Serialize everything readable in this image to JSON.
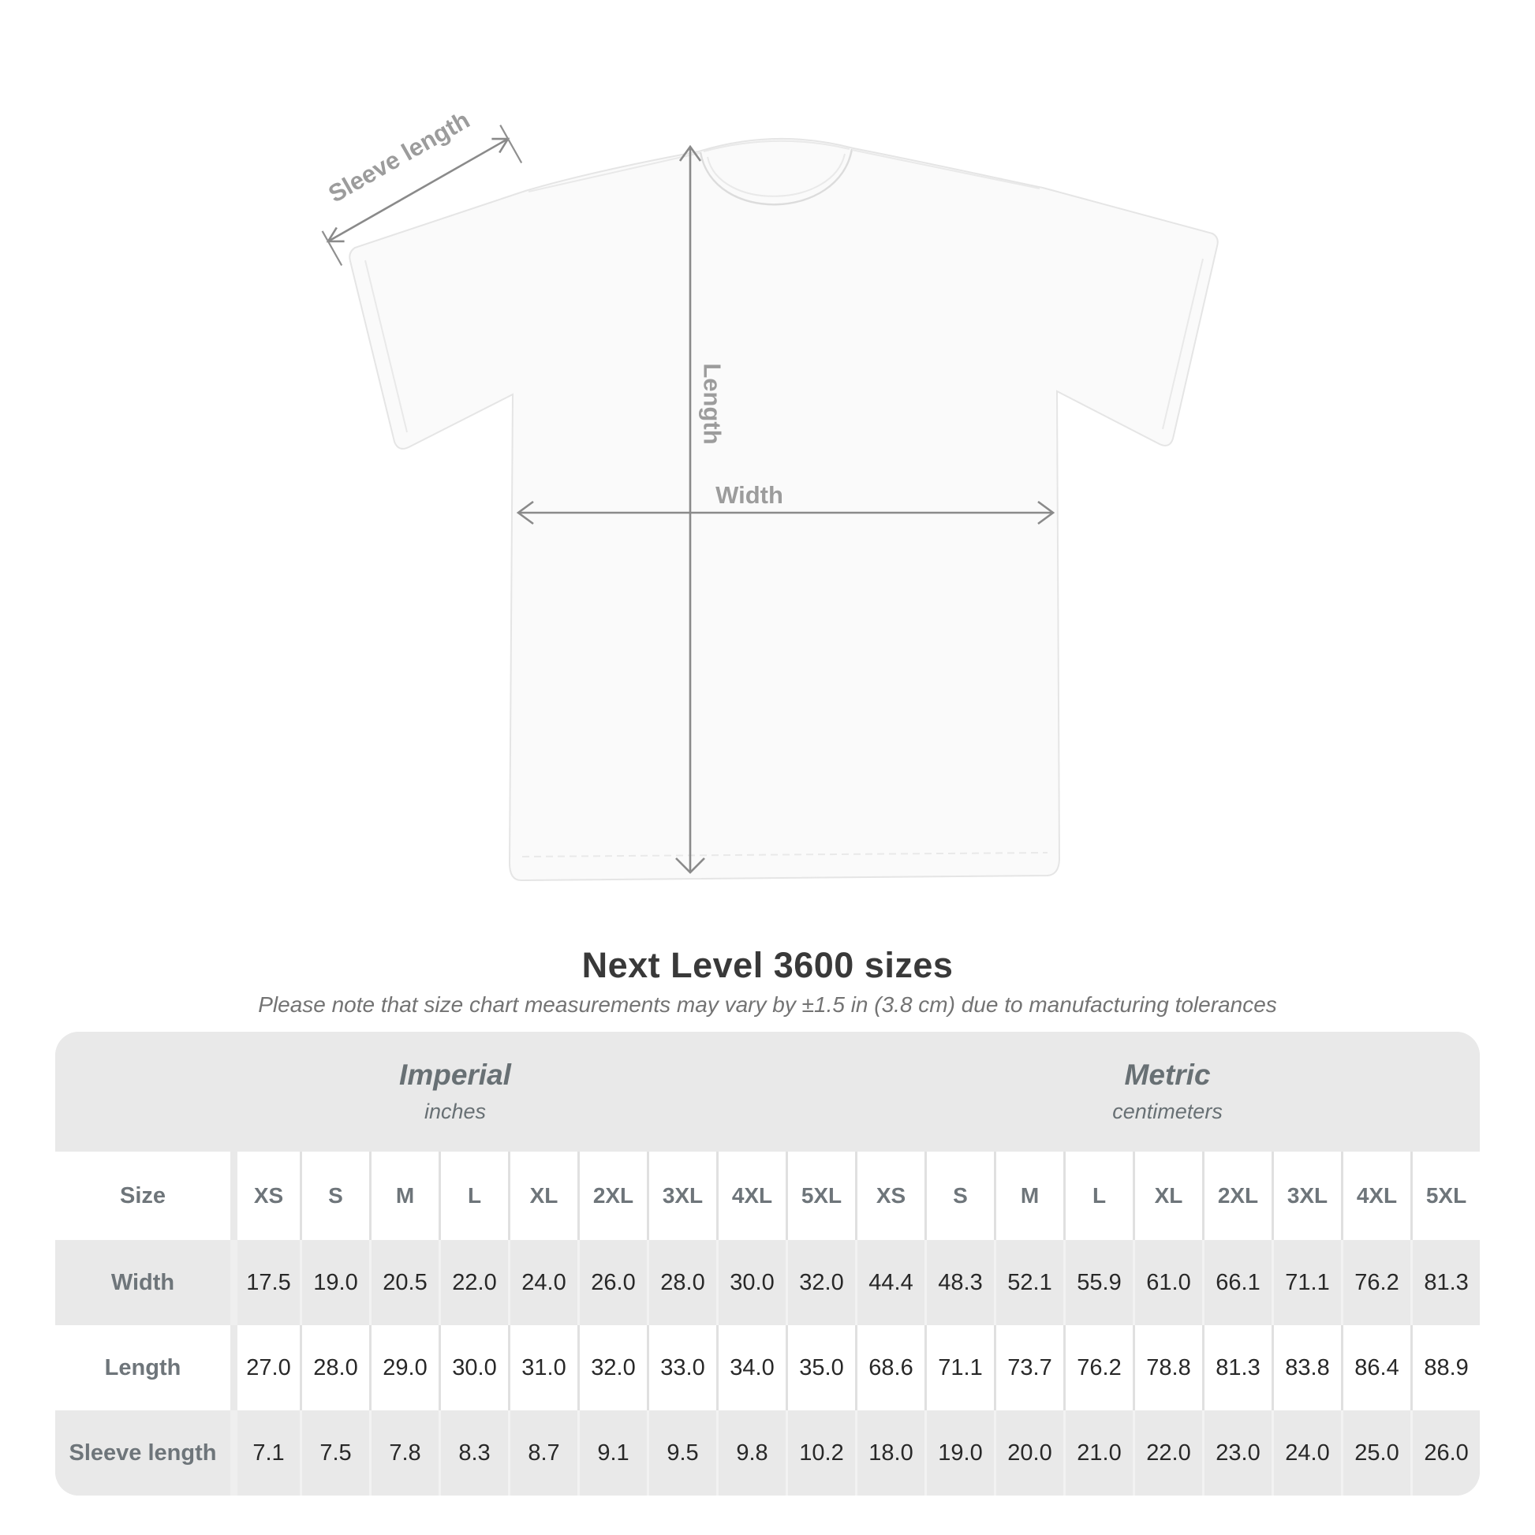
{
  "figure": {
    "sleeve_label": "Sleeve length",
    "length_label": "Length",
    "width_label": "Width"
  },
  "title": "Next Level 3600 sizes",
  "subtitle": "Please note that size chart measurements may vary by ±1.5 in (3.8 cm) due to manufacturing tolerances",
  "table": {
    "groups": [
      {
        "name": "Imperial",
        "unit": "inches"
      },
      {
        "name": "Metric",
        "unit": "centimeters"
      }
    ],
    "size_label": "Size",
    "sizes": [
      "XS",
      "S",
      "M",
      "L",
      "XL",
      "2XL",
      "3XL",
      "4XL",
      "5XL"
    ],
    "rows": [
      {
        "label": "Width",
        "imperial": [
          "17.5",
          "19.0",
          "20.5",
          "22.0",
          "24.0",
          "26.0",
          "28.0",
          "30.0",
          "32.0"
        ],
        "metric": [
          "44.4",
          "48.3",
          "52.1",
          "55.9",
          "61.0",
          "66.1",
          "71.1",
          "76.2",
          "81.3"
        ]
      },
      {
        "label": "Length",
        "imperial": [
          "27.0",
          "28.0",
          "29.0",
          "30.0",
          "31.0",
          "32.0",
          "33.0",
          "34.0",
          "35.0"
        ],
        "metric": [
          "68.6",
          "71.1",
          "73.7",
          "76.2",
          "78.8",
          "81.3",
          "83.8",
          "86.4",
          "88.9"
        ]
      },
      {
        "label": "Sleeve length",
        "imperial": [
          "7.1",
          "7.5",
          "7.8",
          "8.3",
          "8.7",
          "9.1",
          "9.5",
          "9.8",
          "10.2"
        ],
        "metric": [
          "18.0",
          "19.0",
          "20.0",
          "21.0",
          "22.0",
          "23.0",
          "24.0",
          "25.0",
          "26.0"
        ]
      }
    ]
  },
  "chart_data": {
    "type": "table",
    "title": "Next Level 3600 sizes",
    "note": "Please note that size chart measurements may vary by ±1.5 in (3.8 cm) due to manufacturing tolerances",
    "column_groups": [
      "Imperial (inches)",
      "Metric (centimeters)"
    ],
    "sizes": [
      "XS",
      "S",
      "M",
      "L",
      "XL",
      "2XL",
      "3XL",
      "4XL",
      "5XL"
    ],
    "measurements": {
      "Width": {
        "imperial_in": [
          17.5,
          19.0,
          20.5,
          22.0,
          24.0,
          26.0,
          28.0,
          30.0,
          32.0
        ],
        "metric_cm": [
          44.4,
          48.3,
          52.1,
          55.9,
          61.0,
          66.1,
          71.1,
          76.2,
          81.3
        ]
      },
      "Length": {
        "imperial_in": [
          27.0,
          28.0,
          29.0,
          30.0,
          31.0,
          32.0,
          33.0,
          34.0,
          35.0
        ],
        "metric_cm": [
          68.6,
          71.1,
          73.7,
          76.2,
          78.8,
          81.3,
          83.8,
          86.4,
          88.9
        ]
      },
      "Sleeve length": {
        "imperial_in": [
          7.1,
          7.5,
          7.8,
          8.3,
          8.7,
          9.1,
          9.5,
          9.8,
          10.2
        ],
        "metric_cm": [
          18.0,
          19.0,
          20.0,
          21.0,
          22.0,
          23.0,
          24.0,
          25.0,
          26.0
        ]
      }
    },
    "diagram_labels": [
      "Sleeve length",
      "Length",
      "Width"
    ]
  }
}
